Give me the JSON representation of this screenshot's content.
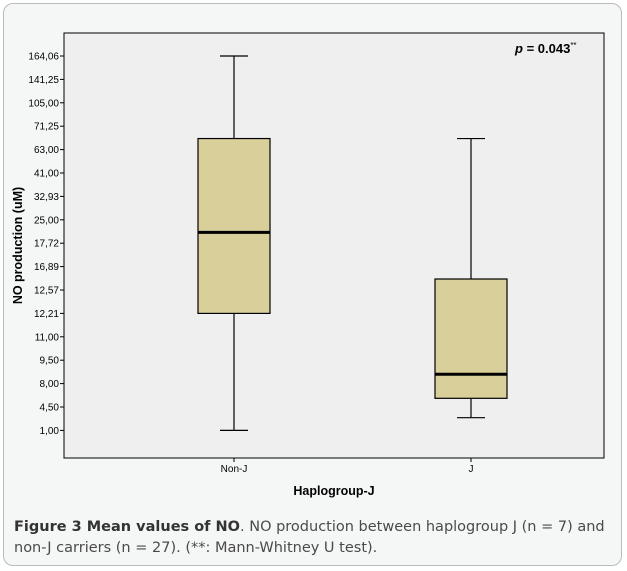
{
  "chart_data": {
    "type": "box",
    "xlabel": "Haplogroup-J",
    "ylabel": "NO production (uM)",
    "categories": [
      "Non-J",
      "J"
    ],
    "y_tick_labels": [
      "1,00",
      "4,50",
      "8,00",
      "9,50",
      "11,00",
      "12,21",
      "12,57",
      "16,89",
      "17,72",
      "25,00",
      "32,93",
      "41,00",
      "63,00",
      "71,25",
      "105,00",
      "141,25",
      "164,06"
    ],
    "boxes": [
      {
        "category": "Non-J",
        "min": "1,00",
        "q1": "12,21",
        "median": "21,1",
        "q3": "66,9",
        "max": "164,06"
      },
      {
        "category": "J",
        "min": "2,9",
        "q1": "5,8",
        "median": "8,6",
        "q3": "14,6",
        "max": "66,9"
      }
    ],
    "annotation": {
      "p_label": "p",
      "p_value": " = 0.043",
      "superscript": "**"
    },
    "colors": {
      "box_fill": "#d8cf9a",
      "plot_bg": "#efefef",
      "stroke": "#000000",
      "median": "#000000"
    }
  },
  "caption": {
    "bold": "Figure 3 Mean values of NO",
    "text": ". NO production between haplogroup J (n = 7) and non-J carriers (n = 27). (**: Mann-Whitney U test)."
  }
}
